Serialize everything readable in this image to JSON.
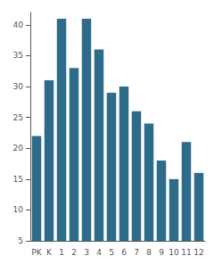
{
  "chart_data": {
    "type": "bar",
    "categories": [
      "PK",
      "K",
      "1",
      "2",
      "3",
      "4",
      "5",
      "6",
      "7",
      "8",
      "9",
      "10",
      "11",
      "12"
    ],
    "values": [
      22,
      31,
      41,
      33,
      41,
      36,
      29,
      30,
      26,
      24,
      18,
      15,
      21,
      16
    ],
    "color": "#2e6b8a",
    "ylim": [
      5,
      42
    ],
    "yticks": [
      5,
      10,
      15,
      20,
      25,
      30,
      35,
      40
    ],
    "grid": false
  }
}
